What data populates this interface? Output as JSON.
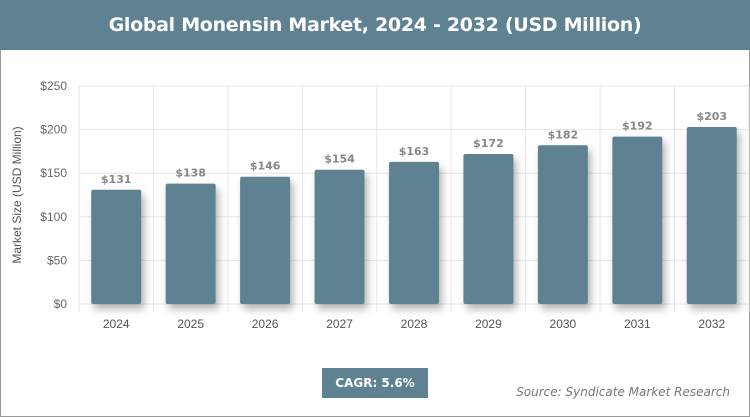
{
  "chart_data": {
    "type": "bar",
    "title": "Global Monensin Market, 2024 - 2032 (USD Million)",
    "xlabel": "",
    "ylabel": "Market Size (USD Million)",
    "categories": [
      "2024",
      "2025",
      "2026",
      "2027",
      "2028",
      "2029",
      "2030",
      "2031",
      "2032"
    ],
    "values": [
      131,
      138,
      146,
      154,
      163,
      172,
      182,
      192,
      203
    ],
    "data_labels": [
      "$131",
      "$138",
      "$146",
      "$154",
      "$163",
      "$172",
      "$182",
      "$192",
      "$203"
    ],
    "yticks": [
      0,
      50,
      100,
      150,
      200,
      250
    ],
    "ytick_labels": [
      "$0",
      "$50",
      "$100",
      "$150",
      "$200",
      "$250"
    ],
    "ylim": [
      0,
      250
    ],
    "grid": true,
    "bar_color": "#5f8292"
  },
  "cagr_label": "CAGR: 5.6%",
  "source": "Source: Syndicate Market Research"
}
